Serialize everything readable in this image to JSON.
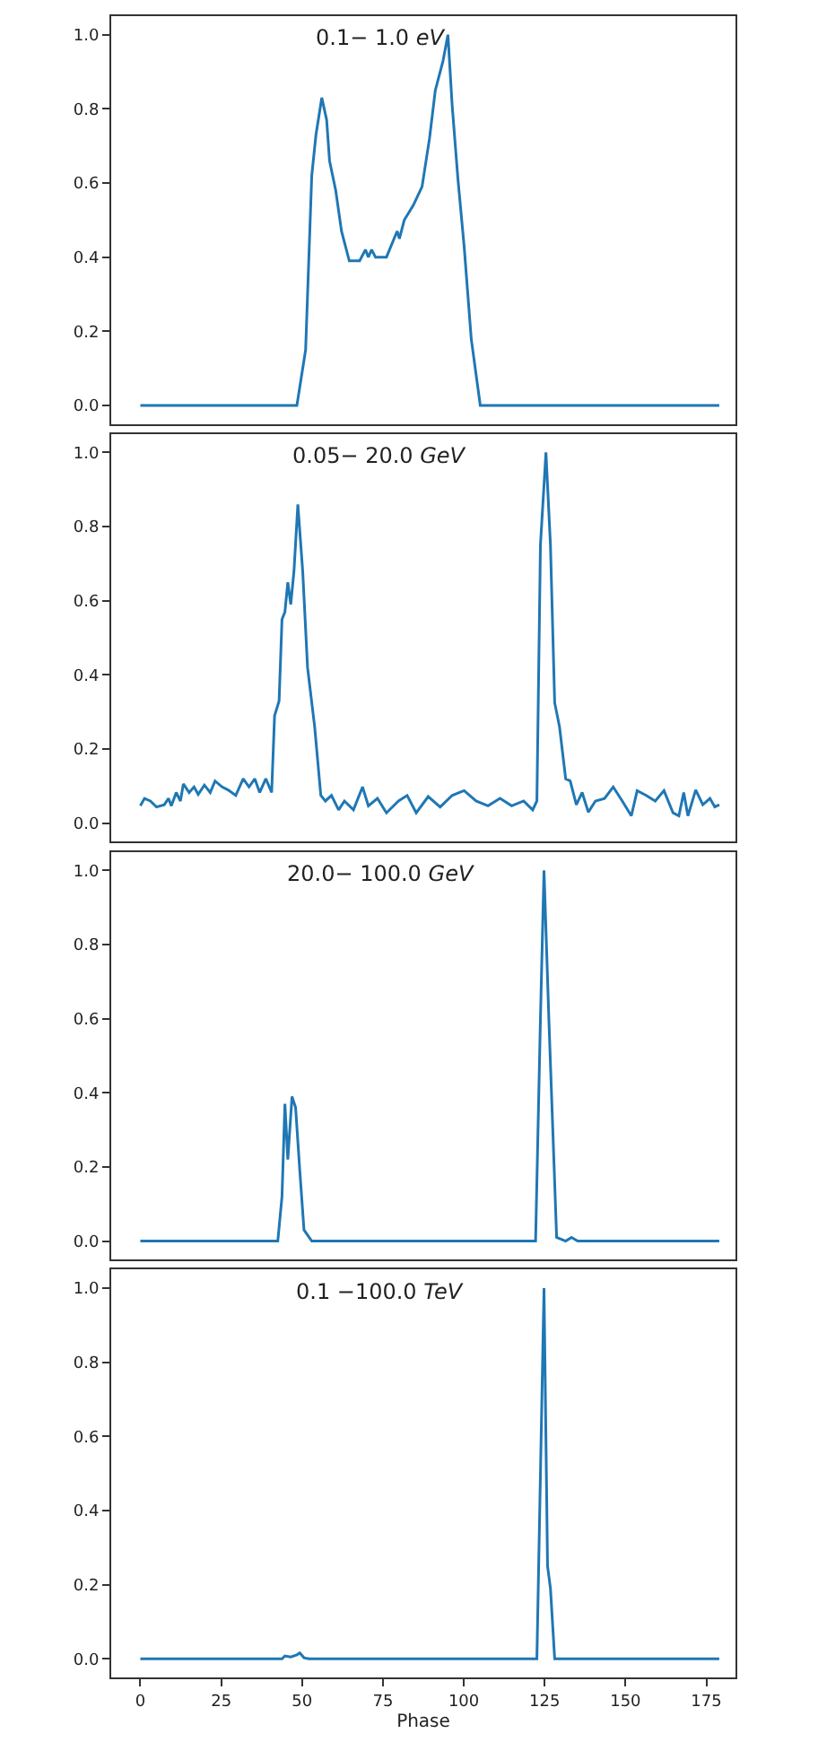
{
  "chart_data": [
    {
      "type": "line",
      "title": "0.1− 1.0 eV",
      "tick_labels": "y",
      "xlim": [
        -9,
        184
      ],
      "ylim": [
        -0.05,
        1.05
      ],
      "yticks": [
        {
          "value": 0,
          "label": "0.0"
        },
        {
          "value": 0.2,
          "label": "0.2"
        },
        {
          "value": 0.4,
          "label": "0.4"
        },
        {
          "value": 0.6,
          "label": "0.6"
        },
        {
          "value": 0.8,
          "label": "0.8"
        },
        {
          "value": 1,
          "label": "1.0"
        }
      ],
      "marker": "none",
      "grid": false,
      "legend": false,
      "series": [
        {
          "color": "#1f77b4",
          "x": [
            0,
            48.4,
            51.1,
            53.0,
            54.3,
            56.1,
            57.6,
            58.5,
            60.4,
            62.2,
            64.6,
            67.8,
            69.6,
            70.5,
            71.5,
            72.7,
            76.1,
            79.4,
            80.1,
            81.6,
            84.4,
            87.1,
            89.4,
            91.2,
            93.6,
            95.1,
            96.4,
            98.2,
            100.1,
            102.3,
            105.1,
            179
          ],
          "values": [
            0,
            0,
            0.15,
            0.62,
            0.73,
            0.83,
            0.77,
            0.66,
            0.58,
            0.47,
            0.39,
            0.39,
            0.42,
            0.4,
            0.42,
            0.4,
            0.4,
            0.47,
            0.45,
            0.5,
            0.54,
            0.59,
            0.72,
            0.85,
            0.93,
            1.0,
            0.81,
            0.61,
            0.43,
            0.18,
            0,
            0
          ]
        }
      ]
    },
    {
      "type": "line",
      "title": "0.05− 20.0 GeV",
      "tick_labels": "y",
      "xlim": [
        -9,
        184
      ],
      "ylim": [
        -0.05,
        1.05
      ],
      "yticks": [
        {
          "value": 0,
          "label": "0.0"
        },
        {
          "value": 0.2,
          "label": "0.2"
        },
        {
          "value": 0.4,
          "label": "0.4"
        },
        {
          "value": 0.6,
          "label": "0.6"
        },
        {
          "value": 0.8,
          "label": "0.8"
        },
        {
          "value": 1,
          "label": "1.0"
        }
      ],
      "marker": "none",
      "grid": false,
      "legend": false,
      "series": [
        {
          "color": "#1f77b4",
          "x": [
            0,
            1.3,
            3.1,
            5.0,
            7.4,
            8.7,
            9.6,
            11.1,
            12.4,
            13.3,
            15.1,
            16.6,
            17.9,
            19.8,
            21.6,
            23.1,
            25.3,
            27.1,
            29.5,
            31.8,
            33.6,
            35.4,
            36.9,
            38.8,
            40.6,
            41.5,
            42.9,
            43.8,
            44.7,
            45.6,
            46.5,
            47.5,
            48.7,
            50.2,
            51.7,
            53.9,
            55.8,
            57.2,
            59.1,
            61.3,
            63.1,
            65.9,
            68.7,
            70.5,
            73.3,
            76.1,
            79.8,
            82.5,
            85.3,
            89.0,
            92.7,
            96.4,
            100.1,
            103.8,
            107.5,
            111.2,
            114.8,
            118.5,
            121.3,
            122.6,
            123.7,
            125.4,
            126.8,
            128.1,
            129.6,
            131.5,
            132.9,
            134.8,
            136.6,
            138.5,
            140.7,
            143.5,
            146.2,
            149.0,
            151.8,
            153.6,
            156.4,
            159.2,
            161.9,
            164.7,
            166.5,
            168.0,
            169.3,
            171.7,
            173.9,
            176.1,
            177.6,
            179
          ],
          "values": [
            0.047,
            0.067,
            0.06,
            0.044,
            0.05,
            0.067,
            0.047,
            0.083,
            0.06,
            0.106,
            0.083,
            0.098,
            0.078,
            0.103,
            0.083,
            0.114,
            0.098,
            0.09,
            0.075,
            0.12,
            0.098,
            0.12,
            0.083,
            0.12,
            0.083,
            0.29,
            0.33,
            0.55,
            0.57,
            0.65,
            0.59,
            0.68,
            0.86,
            0.68,
            0.42,
            0.26,
            0.075,
            0.06,
            0.075,
            0.036,
            0.06,
            0.036,
            0.098,
            0.047,
            0.067,
            0.028,
            0.06,
            0.075,
            0.028,
            0.072,
            0.044,
            0.075,
            0.088,
            0.06,
            0.047,
            0.067,
            0.047,
            0.06,
            0.036,
            0.06,
            0.75,
            1.0,
            0.75,
            0.325,
            0.26,
            0.12,
            0.114,
            0.05,
            0.083,
            0.03,
            0.06,
            0.067,
            0.098,
            0.06,
            0.02,
            0.088,
            0.075,
            0.06,
            0.088,
            0.028,
            0.02,
            0.083,
            0.02,
            0.09,
            0.05,
            0.067,
            0.044,
            0.05
          ]
        }
      ]
    },
    {
      "type": "line",
      "title": "20.0− 100.0 GeV",
      "tick_labels": "y",
      "xlim": [
        -9,
        184
      ],
      "ylim": [
        -0.05,
        1.05
      ],
      "yticks": [
        {
          "value": 0,
          "label": "0.0"
        },
        {
          "value": 0.2,
          "label": "0.2"
        },
        {
          "value": 0.4,
          "label": "0.4"
        },
        {
          "value": 0.6,
          "label": "0.6"
        },
        {
          "value": 0.8,
          "label": "0.8"
        },
        {
          "value": 1,
          "label": "1.0"
        }
      ],
      "marker": "none",
      "grid": false,
      "legend": false,
      "series": [
        {
          "color": "#1f77b4",
          "x": [
            0,
            42.5,
            43.8,
            44.7,
            45.6,
            46.9,
            48.0,
            49.3,
            50.6,
            53.0,
            122.2,
            123.7,
            124.8,
            126.3,
            128.7,
            131.5,
            133.3,
            135.2,
            179
          ],
          "values": [
            0,
            0,
            0.12,
            0.37,
            0.22,
            0.39,
            0.36,
            0.19,
            0.03,
            0,
            0,
            0.6,
            1.0,
            0.6,
            0.01,
            0,
            0.01,
            0,
            0
          ]
        }
      ]
    },
    {
      "type": "line",
      "title": "0.1 −100.0 TeV",
      "xlabel": "Phase",
      "xlim": [
        -9,
        184
      ],
      "xticks": [
        0,
        25,
        50,
        75,
        100,
        125,
        150,
        175
      ],
      "ylim": [
        -0.05,
        1.05
      ],
      "yticks": [
        {
          "value": 0,
          "label": "0.0"
        },
        {
          "value": 0.2,
          "label": "0.2"
        },
        {
          "value": 0.4,
          "label": "0.4"
        },
        {
          "value": 0.6,
          "label": "0.6"
        },
        {
          "value": 0.8,
          "label": "0.8"
        },
        {
          "value": 1,
          "label": "1.0"
        }
      ],
      "marker": "none",
      "grid": false,
      "legend": false,
      "series": [
        {
          "color": "#1f77b4",
          "x": [
            0,
            43.8,
            44.7,
            46.5,
            48.4,
            49.3,
            50.6,
            52.1,
            122.6,
            124.8,
            125.9,
            126.8,
            128.1,
            179
          ],
          "values": [
            0,
            0,
            0.008,
            0.005,
            0.011,
            0.016,
            0.003,
            0,
            0,
            1.0,
            0.25,
            0.19,
            0,
            0
          ]
        }
      ]
    }
  ]
}
